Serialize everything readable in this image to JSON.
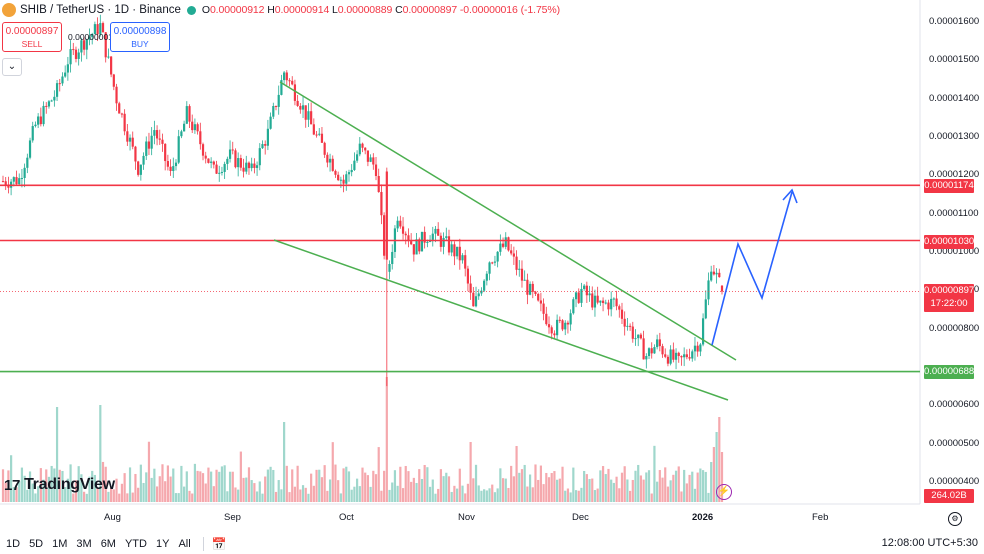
{
  "header": {
    "symbol": "SHIB / TetherUS · 1D · Binance",
    "ohlc_open_key": "O",
    "ohlc_open": "0.00000912",
    "ohlc_high_key": "H",
    "ohlc_high": "0.00000914",
    "ohlc_low_key": "L",
    "ohlc_low": "0.00000889",
    "ohlc_close_key": "C",
    "ohlc_close": "0.00000897",
    "ohlc_change": "-0.00000016 (-1.75%)"
  },
  "trade": {
    "sell_price": "0.00000897",
    "sell_label": "SELL",
    "buy_price": "0.00000898",
    "buy_label": "BUY",
    "spread": "0.00000001"
  },
  "chart_data": {
    "type": "candlestick",
    "symbol": "SHIB / TetherUS",
    "interval": "1D",
    "exchange": "Binance",
    "y_ticks": [
      "0.00001600",
      "0.00001500",
      "0.00001400",
      "0.00001300",
      "0.00001200",
      "0.00001100",
      "0.00001000",
      "0.00000900",
      "0.00000800",
      "0.00000600",
      "0.00000500",
      "0.00000400"
    ],
    "ylim": [
      3.7e-06,
      1.64e-05
    ],
    "x_ticks": [
      "Aug",
      "Sep",
      "Oct",
      "Nov",
      "Dec",
      "2026",
      "Feb"
    ],
    "horizontal_lines": [
      {
        "price": 1.174e-05,
        "label": "0.00001174",
        "color": "#f23645"
      },
      {
        "price": 1.03e-05,
        "label": "0.00001030",
        "color": "#f23645"
      },
      {
        "price": 6.88e-06,
        "label": "0.00000688",
        "color": "#4caf50"
      }
    ],
    "last_price": {
      "label": "0.00000897",
      "countdown": "17:22:00",
      "color": "#f23645"
    },
    "volume_label": "264.02B",
    "up_color": "#22ab94",
    "down_color": "#f23645",
    "series_close_anchors": [
      [
        0,
        1.185
      ],
      [
        6,
        1.19
      ],
      [
        12,
        1.33
      ],
      [
        20,
        1.42
      ],
      [
        24,
        1.5
      ],
      [
        30,
        1.55
      ],
      [
        36,
        1.59
      ],
      [
        42,
        1.4
      ],
      [
        50,
        1.22
      ],
      [
        56,
        1.32
      ],
      [
        62,
        1.2
      ],
      [
        68,
        1.36
      ],
      [
        72,
        1.3
      ],
      [
        78,
        1.21
      ],
      [
        84,
        1.25
      ],
      [
        92,
        1.21
      ],
      [
        98,
        1.31
      ],
      [
        104,
        1.47
      ],
      [
        110,
        1.39
      ],
      [
        116,
        1.3
      ],
      [
        122,
        1.23
      ],
      [
        126,
        1.18
      ],
      [
        132,
        1.27
      ],
      [
        138,
        1.22
      ],
      [
        142,
        0.93
      ],
      [
        146,
        1.1
      ],
      [
        152,
        1.01
      ],
      [
        158,
        1.05
      ],
      [
        164,
        1.02
      ],
      [
        170,
        0.98
      ],
      [
        174,
        0.85
      ],
      [
        180,
        0.98
      ],
      [
        186,
        1.02
      ],
      [
        192,
        0.93
      ],
      [
        198,
        0.86
      ],
      [
        204,
        0.8
      ],
      [
        208,
        0.82
      ],
      [
        214,
        0.9
      ],
      [
        220,
        0.86
      ],
      [
        226,
        0.87
      ],
      [
        232,
        0.8
      ],
      [
        238,
        0.73
      ],
      [
        242,
        0.76
      ],
      [
        246,
        0.73
      ],
      [
        250,
        0.71
      ],
      [
        254,
        0.74
      ],
      [
        258,
        0.77
      ],
      [
        262,
        0.97
      ],
      [
        266,
        0.9
      ]
    ]
  },
  "branding": {
    "name": "TradingView",
    "mark": "17"
  },
  "footer": {
    "tf_1d": "1D",
    "tf_5d": "5D",
    "tf_1m": "1M",
    "tf_3m": "3M",
    "tf_6m": "6M",
    "tf_ytd": "YTD",
    "tf_1y": "1Y",
    "tf_all": "All",
    "clock": "12:08:00 UTC+5:30"
  },
  "icons": {
    "collapse": "chevron-down-icon",
    "calendar": "calendar-icon",
    "bolt": "lightning-icon",
    "settings": "gear-icon"
  }
}
